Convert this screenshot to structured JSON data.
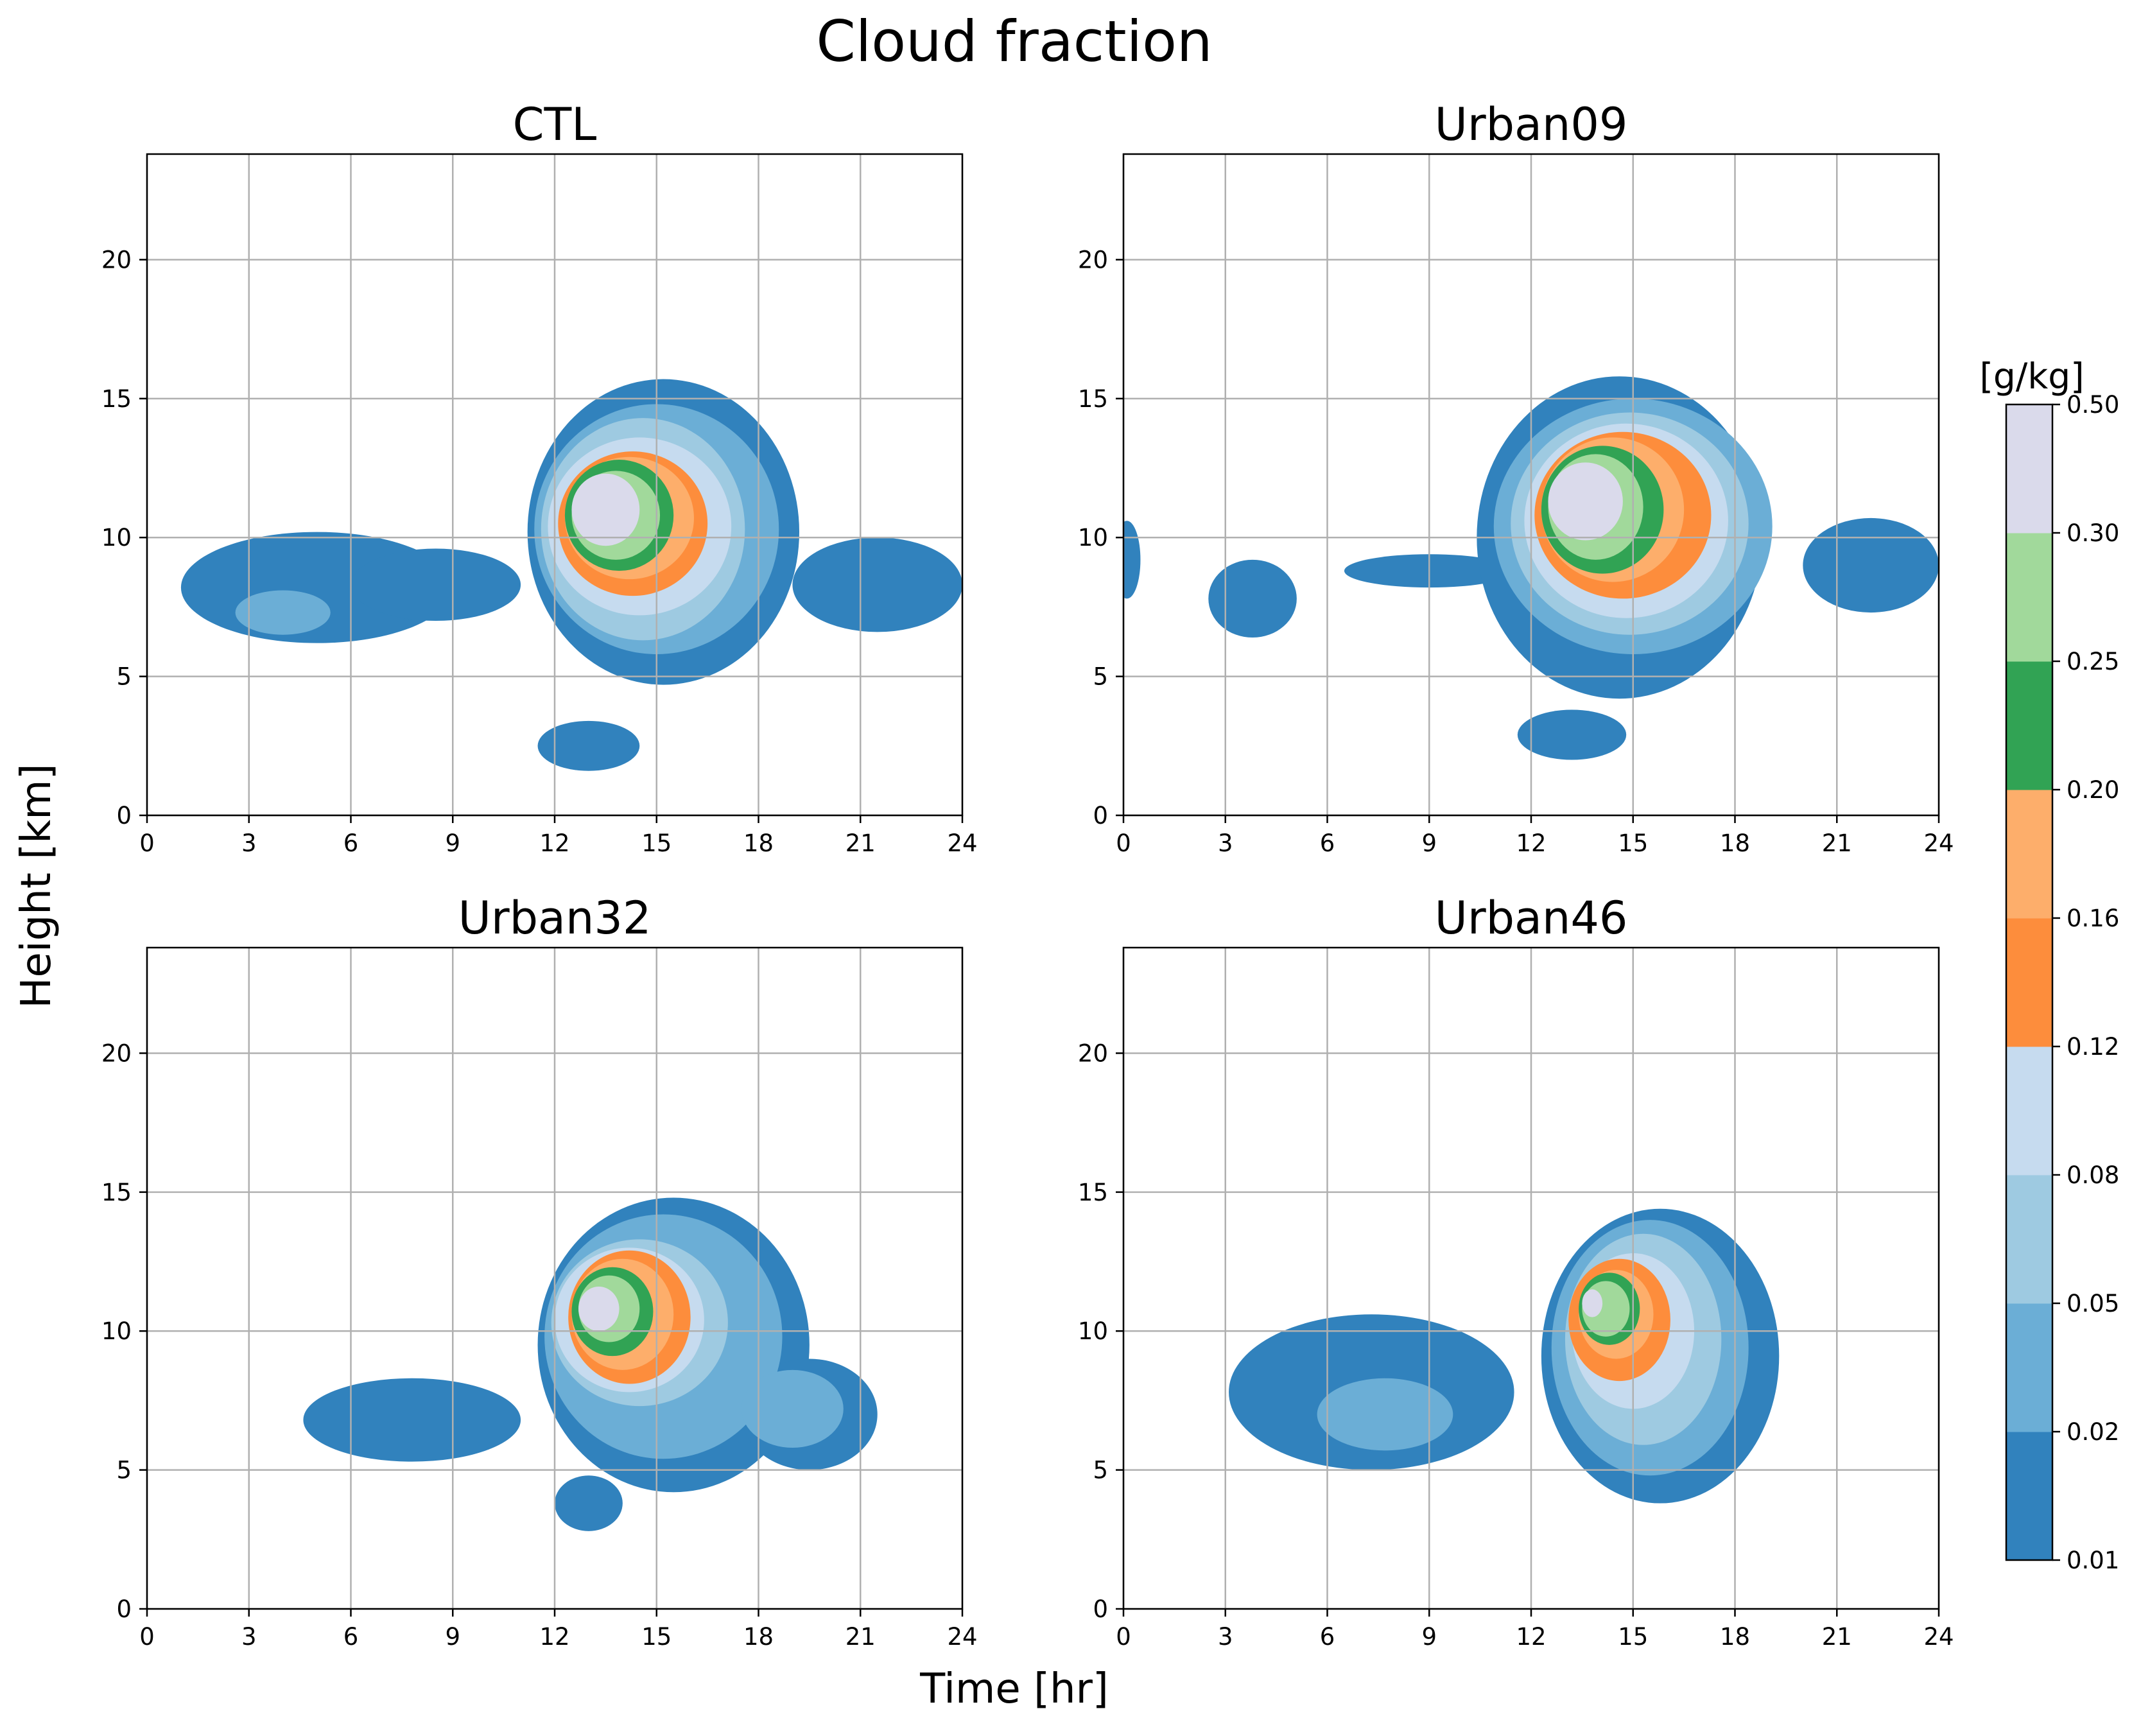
{
  "chart_data": {
    "type": "contourf",
    "title": "Cloud fraction",
    "xlabel": "Time [hr]",
    "ylabel": "Height [km]",
    "xlim": [
      0,
      24
    ],
    "ylim": [
      0,
      23.8
    ],
    "xticks": [
      0,
      3,
      6,
      9,
      12,
      15,
      18,
      21,
      24
    ],
    "yticks": [
      0,
      5,
      10,
      15,
      20
    ],
    "grid": true,
    "colorbar": {
      "unit": "[g/kg]",
      "levels": [
        0.01,
        0.02,
        0.05,
        0.08,
        0.12,
        0.16,
        0.2,
        0.25,
        0.3,
        0.5
      ],
      "level_labels": [
        "0.01",
        "0.02",
        "0.05",
        "0.08",
        "0.12",
        "0.16",
        "0.20",
        "0.25",
        "0.30",
        "0.50"
      ],
      "colors": [
        "#3182bd",
        "#6baed6",
        "#9ecae1",
        "#c6dbef",
        "#fd8d3c",
        "#fdae6b",
        "#31a354",
        "#a1d99b",
        "#dadaeb"
      ]
    },
    "panels": [
      {
        "title": "CTL",
        "blobs": [
          {
            "cx": 5.0,
            "cy": 8.2,
            "rx": 4.0,
            "ry": 2.0,
            "level": 0
          },
          {
            "cx": 8.5,
            "cy": 8.3,
            "rx": 2.5,
            "ry": 1.3,
            "level": 0
          },
          {
            "cx": 21.5,
            "cy": 8.3,
            "rx": 2.5,
            "ry": 1.7,
            "level": 0
          },
          {
            "cx": 13.0,
            "cy": 2.5,
            "rx": 1.5,
            "ry": 0.9,
            "level": 0
          },
          {
            "cx": 15.2,
            "cy": 10.2,
            "rx": 4.0,
            "ry": 5.5,
            "level": 0
          },
          {
            "cx": 4.0,
            "cy": 7.3,
            "rx": 1.4,
            "ry": 0.8,
            "level": 1
          },
          {
            "cx": 15.0,
            "cy": 10.3,
            "rx": 3.6,
            "ry": 4.5,
            "level": 1
          },
          {
            "cx": 14.6,
            "cy": 10.3,
            "rx": 3.0,
            "ry": 4.0,
            "level": 2
          },
          {
            "cx": 14.5,
            "cy": 10.4,
            "rx": 2.7,
            "ry": 3.2,
            "level": 3
          },
          {
            "cx": 14.3,
            "cy": 10.5,
            "rx": 2.2,
            "ry": 2.6,
            "level": 4
          },
          {
            "cx": 14.2,
            "cy": 10.7,
            "rx": 1.9,
            "ry": 2.2,
            "level": 5
          },
          {
            "cx": 13.9,
            "cy": 10.8,
            "rx": 1.6,
            "ry": 2.0,
            "level": 6
          },
          {
            "cx": 13.8,
            "cy": 10.8,
            "rx": 1.3,
            "ry": 1.6,
            "level": 7
          },
          {
            "cx": 13.5,
            "cy": 11.0,
            "rx": 1.0,
            "ry": 1.3,
            "level": 8
          }
        ]
      },
      {
        "title": "Urban09",
        "blobs": [
          {
            "cx": 0.1,
            "cy": 9.2,
            "rx": 0.4,
            "ry": 1.4,
            "level": 0
          },
          {
            "cx": 3.8,
            "cy": 7.8,
            "rx": 1.3,
            "ry": 1.4,
            "level": 0
          },
          {
            "cx": 9.0,
            "cy": 8.8,
            "rx": 2.5,
            "ry": 0.6,
            "level": 0
          },
          {
            "cx": 14.6,
            "cy": 10.0,
            "rx": 4.2,
            "ry": 5.8,
            "level": 0
          },
          {
            "cx": 22.0,
            "cy": 9.0,
            "rx": 2.0,
            "ry": 1.7,
            "level": 0
          },
          {
            "cx": 13.2,
            "cy": 2.9,
            "rx": 1.6,
            "ry": 0.9,
            "level": 0
          },
          {
            "cx": 15.0,
            "cy": 10.4,
            "rx": 4.1,
            "ry": 4.6,
            "level": 1
          },
          {
            "cx": 14.9,
            "cy": 10.5,
            "rx": 3.5,
            "ry": 4.0,
            "level": 2
          },
          {
            "cx": 14.8,
            "cy": 10.6,
            "rx": 3.0,
            "ry": 3.5,
            "level": 3
          },
          {
            "cx": 14.7,
            "cy": 10.8,
            "rx": 2.6,
            "ry": 3.0,
            "level": 4
          },
          {
            "cx": 14.4,
            "cy": 11.0,
            "rx": 2.1,
            "ry": 2.6,
            "level": 5
          },
          {
            "cx": 14.1,
            "cy": 11.0,
            "rx": 1.8,
            "ry": 2.3,
            "level": 6
          },
          {
            "cx": 13.9,
            "cy": 11.1,
            "rx": 1.4,
            "ry": 1.9,
            "level": 7
          },
          {
            "cx": 13.6,
            "cy": 11.3,
            "rx": 1.1,
            "ry": 1.4,
            "level": 8
          }
        ]
      },
      {
        "title": "Urban32",
        "blobs": [
          {
            "cx": 7.8,
            "cy": 6.8,
            "rx": 3.2,
            "ry": 1.5,
            "level": 0
          },
          {
            "cx": 15.5,
            "cy": 9.5,
            "rx": 4.0,
            "ry": 5.3,
            "level": 0
          },
          {
            "cx": 19.5,
            "cy": 7.0,
            "rx": 2.0,
            "ry": 2.0,
            "level": 0
          },
          {
            "cx": 13.0,
            "cy": 3.8,
            "rx": 1.0,
            "ry": 1.0,
            "level": 0
          },
          {
            "cx": 15.2,
            "cy": 9.8,
            "rx": 3.5,
            "ry": 4.4,
            "level": 1
          },
          {
            "cx": 19.0,
            "cy": 7.2,
            "rx": 1.5,
            "ry": 1.4,
            "level": 1
          },
          {
            "cx": 14.5,
            "cy": 10.3,
            "rx": 2.6,
            "ry": 3.0,
            "level": 2
          },
          {
            "cx": 14.2,
            "cy": 10.4,
            "rx": 2.2,
            "ry": 2.6,
            "level": 3
          },
          {
            "cx": 14.2,
            "cy": 10.5,
            "rx": 1.8,
            "ry": 2.4,
            "level": 4
          },
          {
            "cx": 14.0,
            "cy": 10.6,
            "rx": 1.5,
            "ry": 2.0,
            "level": 5
          },
          {
            "cx": 13.7,
            "cy": 10.7,
            "rx": 1.2,
            "ry": 1.6,
            "level": 6
          },
          {
            "cx": 13.6,
            "cy": 10.8,
            "rx": 0.9,
            "ry": 1.2,
            "level": 7
          },
          {
            "cx": 13.3,
            "cy": 10.8,
            "rx": 0.6,
            "ry": 0.8,
            "level": 8
          }
        ]
      },
      {
        "title": "Urban46",
        "blobs": [
          {
            "cx": 7.3,
            "cy": 7.8,
            "rx": 4.2,
            "ry": 2.8,
            "level": 0
          },
          {
            "cx": 15.8,
            "cy": 9.1,
            "rx": 3.5,
            "ry": 5.3,
            "level": 0
          },
          {
            "cx": 7.7,
            "cy": 7.0,
            "rx": 2.0,
            "ry": 1.3,
            "level": 1
          },
          {
            "cx": 15.5,
            "cy": 9.4,
            "rx": 2.9,
            "ry": 4.6,
            "level": 1
          },
          {
            "cx": 15.3,
            "cy": 9.7,
            "rx": 2.3,
            "ry": 3.8,
            "level": 2
          },
          {
            "cx": 15.0,
            "cy": 10.0,
            "rx": 1.8,
            "ry": 2.8,
            "level": 3
          },
          {
            "cx": 14.6,
            "cy": 10.4,
            "rx": 1.5,
            "ry": 2.2,
            "level": 4
          },
          {
            "cx": 14.5,
            "cy": 10.6,
            "rx": 1.1,
            "ry": 1.6,
            "level": 5
          },
          {
            "cx": 14.3,
            "cy": 10.8,
            "rx": 0.9,
            "ry": 1.3,
            "level": 6
          },
          {
            "cx": 14.2,
            "cy": 10.8,
            "rx": 0.7,
            "ry": 1.0,
            "level": 7
          },
          {
            "cx": 13.8,
            "cy": 11.0,
            "rx": 0.3,
            "ry": 0.5,
            "level": 8
          }
        ]
      }
    ]
  }
}
